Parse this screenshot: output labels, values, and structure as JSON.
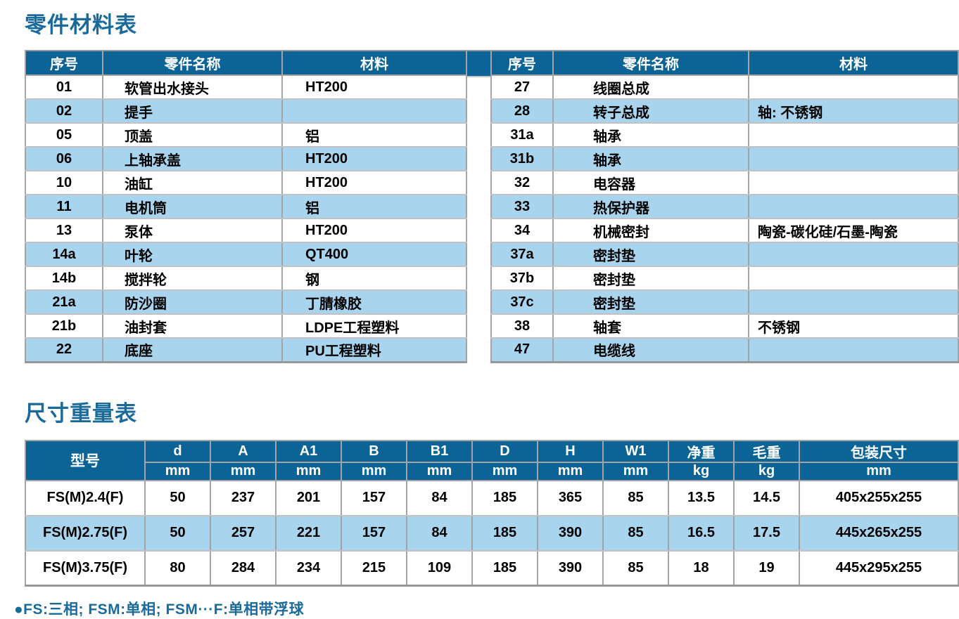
{
  "page": {
    "parts_title": "零件材料表",
    "dimensions_title": "尺寸重量表",
    "footnote": "●FS:三相; FSM:单相; FSM···F:单相带浮球"
  },
  "colors": {
    "header_blue": "#0b6396",
    "row_blue": "#a9d4ed",
    "title_blue": "#1a6b9c"
  },
  "parts_table": {
    "headers": [
      "序号",
      "零件名称",
      "材料"
    ],
    "left_rows": [
      {
        "no": "01",
        "name": "软管出水接头",
        "material": "HT200"
      },
      {
        "no": "02",
        "name": "提手",
        "material": ""
      },
      {
        "no": "05",
        "name": "顶盖",
        "material": "铝"
      },
      {
        "no": "06",
        "name": "上轴承盖",
        "material": "HT200"
      },
      {
        "no": "10",
        "name": "油缸",
        "material": "HT200"
      },
      {
        "no": "11",
        "name": "电机筒",
        "material": "铝"
      },
      {
        "no": "13",
        "name": "泵体",
        "material": "HT200"
      },
      {
        "no": "14a",
        "name": "叶轮",
        "material": "QT400"
      },
      {
        "no": "14b",
        "name": "搅拌轮",
        "material": "钢"
      },
      {
        "no": "21a",
        "name": "防沙圈",
        "material": "丁腈橡胶"
      },
      {
        "no": "21b",
        "name": "油封套",
        "material": "LDPE工程塑料"
      },
      {
        "no": "22",
        "name": "底座",
        "material": "PU工程塑料"
      }
    ],
    "right_rows": [
      {
        "no": "27",
        "name": "线圈总成",
        "material": ""
      },
      {
        "no": "28",
        "name": "转子总成",
        "material": "轴: 不锈钢"
      },
      {
        "no": "31a",
        "name": "轴承",
        "material": ""
      },
      {
        "no": "31b",
        "name": "轴承",
        "material": ""
      },
      {
        "no": "32",
        "name": "电容器",
        "material": ""
      },
      {
        "no": "33",
        "name": "热保护器",
        "material": ""
      },
      {
        "no": "34",
        "name": "机械密封",
        "material": "陶瓷-碳化硅/石墨-陶瓷"
      },
      {
        "no": "37a",
        "name": "密封垫",
        "material": ""
      },
      {
        "no": "37b",
        "name": "密封垫",
        "material": ""
      },
      {
        "no": "37c",
        "name": "密封垫",
        "material": ""
      },
      {
        "no": "38",
        "name": "轴套",
        "material": "不锈钢"
      },
      {
        "no": "47",
        "name": "电缆线",
        "material": ""
      }
    ]
  },
  "dimensions_table": {
    "model_header": "型号",
    "columns": [
      {
        "label": "d",
        "unit": "mm"
      },
      {
        "label": "A",
        "unit": "mm"
      },
      {
        "label": "A1",
        "unit": "mm"
      },
      {
        "label": "B",
        "unit": "mm"
      },
      {
        "label": "B1",
        "unit": "mm"
      },
      {
        "label": "D",
        "unit": "mm"
      },
      {
        "label": "H",
        "unit": "mm"
      },
      {
        "label": "W1",
        "unit": "mm"
      },
      {
        "label": "净重",
        "unit": "kg"
      },
      {
        "label": "毛重",
        "unit": "kg"
      },
      {
        "label": "包装尺寸",
        "unit": "mm"
      }
    ],
    "rows": [
      {
        "model": "FS(M)2.4(F)",
        "values": [
          "50",
          "237",
          "201",
          "157",
          "84",
          "185",
          "365",
          "85",
          "13.5",
          "14.5",
          "405x255x255"
        ]
      },
      {
        "model": "FS(M)2.75(F)",
        "values": [
          "50",
          "257",
          "221",
          "157",
          "84",
          "185",
          "390",
          "85",
          "16.5",
          "17.5",
          "445x265x255"
        ]
      },
      {
        "model": "FS(M)3.75(F)",
        "values": [
          "80",
          "284",
          "234",
          "215",
          "109",
          "185",
          "390",
          "85",
          "18",
          "19",
          "445x295x255"
        ]
      }
    ]
  }
}
